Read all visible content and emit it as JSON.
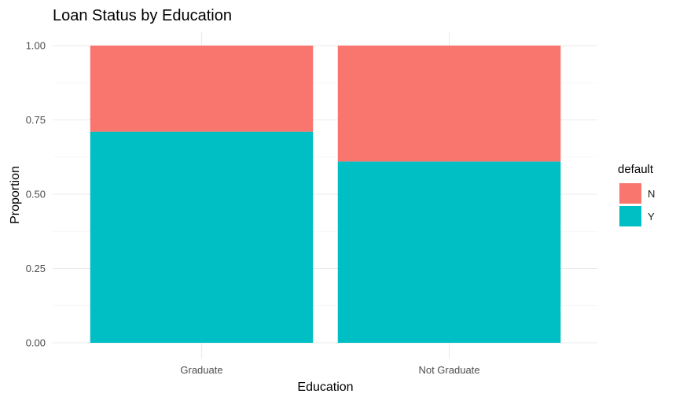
{
  "chart_data": {
    "type": "bar",
    "stacked": true,
    "title": "Loan Status by Education",
    "xlabel": "Education",
    "ylabel": "Proportion",
    "categories": [
      "Graduate",
      "Not Graduate"
    ],
    "series": [
      {
        "name": "Y",
        "values": [
          0.71,
          0.61
        ],
        "color": "#00BFC4"
      },
      {
        "name": "N",
        "values": [
          0.29,
          0.39
        ],
        "color": "#F8766D"
      }
    ],
    "ylim": [
      0,
      1
    ],
    "yticks": [
      "0.00",
      "0.25",
      "0.50",
      "0.75",
      "1.00"
    ],
    "ytick_values": [
      0,
      0.25,
      0.5,
      0.75,
      1
    ],
    "grid": true,
    "legend": {
      "title": "default",
      "position": "right",
      "entries": [
        {
          "label": "N",
          "color": "#F8766D"
        },
        {
          "label": "Y",
          "color": "#00BFC4"
        }
      ]
    }
  }
}
